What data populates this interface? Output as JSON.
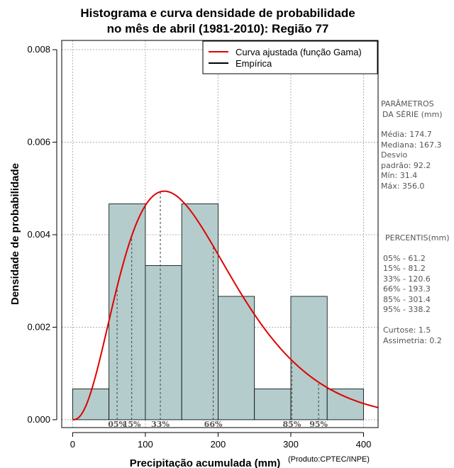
{
  "chart_data": {
    "type": "bar",
    "title_line1": "Histograma e curva densidade de probabilidade",
    "title_line2": "no mês de abril (1981-2010): Região 77",
    "xlabel": "Precipitação acumulada (mm)",
    "ylabel": "Densidade de probabilidade",
    "credit": "(Produto:CPTEC/INPE)",
    "xlim": [
      -15,
      420
    ],
    "ylim": [
      -0.00017,
      0.0082
    ],
    "x_ticks": [
      "0",
      "100",
      "200",
      "300",
      "400"
    ],
    "y_ticks": [
      "0.000",
      "0.002",
      "0.004",
      "0.006",
      "0.008"
    ],
    "grid": true,
    "legend_position": "top-right",
    "legend": {
      "fitted": "Curva ajustada (função Gama)",
      "empirical": "Empírica"
    },
    "bins": [
      {
        "x0": 0,
        "x1": 50,
        "density": 0.000667
      },
      {
        "x0": 50,
        "x1": 100,
        "density": 0.004667
      },
      {
        "x0": 100,
        "x1": 150,
        "density": 0.003333
      },
      {
        "x0": 150,
        "x1": 200,
        "density": 0.004667
      },
      {
        "x0": 200,
        "x1": 250,
        "density": 0.002667
      },
      {
        "x0": 250,
        "x1": 300,
        "density": 0.000667
      },
      {
        "x0": 300,
        "x1": 350,
        "density": 0.002667
      },
      {
        "x0": 350,
        "x1": 400,
        "density": 0.000667
      }
    ],
    "gamma_fit": {
      "shape": 3.6,
      "scale": 48.5
    },
    "percentile_markers": [
      {
        "label": "05%",
        "x": 61.2
      },
      {
        "label": "15%",
        "x": 81.2
      },
      {
        "label": "33%",
        "x": 120.6
      },
      {
        "label": "66%",
        "x": 193.3
      },
      {
        "label": "85%",
        "x": 301.4
      },
      {
        "label": "95%",
        "x": 338.2
      }
    ],
    "colors": {
      "bar_fill": "#b4cccc",
      "curve": "#e00000",
      "grid": "#b0b0b0",
      "marker": "#555555"
    }
  },
  "stats_panel": {
    "params_title_1": "PARÂMETROS",
    "params_title_2": "DA SÉRIE (mm)",
    "media": "Média:  174.7",
    "mediana": "Mediana:  167.3",
    "desvio_1": "Desvio",
    "desvio_2": "padrão:  92.2",
    "min": "Mín:  31.4",
    "max": "Máx:  356.0",
    "percentis_title": "PERCENTIS(mm)",
    "percentis": [
      "05% -  61.2",
      "15% -  81.2",
      "33% -  120.6",
      "66% -  193.3",
      "85% -  301.4",
      "95% -  338.2"
    ],
    "curtose": "Curtose:  1.5",
    "assimetria": "Assimetria:  0.2"
  }
}
